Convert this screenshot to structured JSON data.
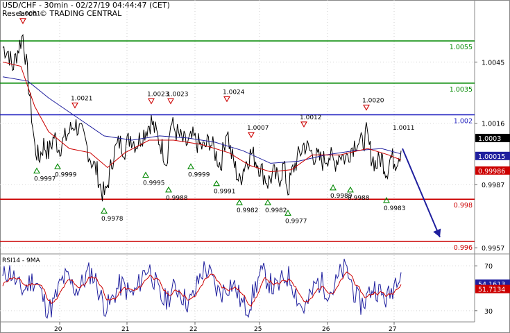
{
  "header": {
    "title": "USD/CHF - 30min - 02/27/19 04:44:47 (CET)",
    "source": "Research © TRADING CENTRAL"
  },
  "colors": {
    "price": "#000000",
    "ma_fast": "#cc0000",
    "ma_slow": "#1f1f9e",
    "support": "#cc0000",
    "resistance_green": "#008800",
    "resistance_blue": "#1f1fbf",
    "projection": "#1f1f9e",
    "pivot_high": "#cc0000",
    "pivot_low": "#008800"
  },
  "chart_data": [
    {
      "type": "line",
      "panel": "price",
      "ylim": [
        0.9946,
        1.0066
      ],
      "x_ticks": [
        "20",
        "21",
        "22",
        "25",
        "26",
        "27"
      ],
      "y_ticks": [
        "1.0045",
        "1.0016",
        "0.9987",
        "0.9957"
      ],
      "levels": [
        {
          "value": 1.0055,
          "label": "1.0055",
          "kind": "resistance_green"
        },
        {
          "value": 1.0035,
          "label": "1.0035",
          "kind": "resistance_green"
        },
        {
          "value": 1.002,
          "label": "1.002",
          "kind": "resistance_blue"
        },
        {
          "value": 0.998,
          "label": "0.998",
          "kind": "support"
        },
        {
          "value": 0.996,
          "label": "0.996",
          "kind": "support"
        }
      ],
      "last_price": {
        "value": 1.0003,
        "label": "1.0003"
      },
      "ma_values": [
        {
          "value": 1.00015,
          "label": "1.00015",
          "kind": "ma_slow"
        },
        {
          "value": 0.99986,
          "label": "0.99986",
          "kind": "ma_fast"
        }
      ],
      "pivots": [
        {
          "t": 33,
          "value": 1.0061,
          "label": "1.0061",
          "kind": "high"
        },
        {
          "t": 108,
          "value": 1.0021,
          "label": "1.0021",
          "kind": "high"
        },
        {
          "t": 218,
          "value": 1.0023,
          "label": "1.0023",
          "kind": "high"
        },
        {
          "t": 246,
          "value": 1.0023,
          "label": "1.0023",
          "kind": "high"
        },
        {
          "t": 327,
          "value": 1.0024,
          "label": "1.0024",
          "kind": "high"
        },
        {
          "t": 362,
          "value": 1.0007,
          "label": "1.0007",
          "kind": "high"
        },
        {
          "t": 438,
          "value": 1.0012,
          "label": "1.0012",
          "kind": "high"
        },
        {
          "t": 528,
          "value": 1.002,
          "label": "1.0020",
          "kind": "high"
        },
        {
          "t": 566,
          "value": 1.0011,
          "label": "1.0011",
          "kind": "text"
        },
        {
          "t": 53,
          "value": 0.9997,
          "label": "0.9997",
          "kind": "low"
        },
        {
          "t": 83,
          "value": 0.9999,
          "label": "0.9999",
          "kind": "low"
        },
        {
          "t": 150,
          "value": 0.9978,
          "label": "0.9978",
          "kind": "low"
        },
        {
          "t": 210,
          "value": 0.9995,
          "label": "0.9995",
          "kind": "low"
        },
        {
          "t": 243,
          "value": 0.9988,
          "label": "0.9988",
          "kind": "low"
        },
        {
          "t": 275,
          "value": 0.9999,
          "label": "0.9999",
          "kind": "low"
        },
        {
          "t": 312,
          "value": 0.9991,
          "label": "0.9991",
          "kind": "low"
        },
        {
          "t": 345,
          "value": 0.9982,
          "label": "0.9982",
          "kind": "low"
        },
        {
          "t": 386,
          "value": 0.9982,
          "label": "0.9982",
          "kind": "low"
        },
        {
          "t": 415,
          "value": 0.9977,
          "label": "0.9977",
          "kind": "low"
        },
        {
          "t": 480,
          "value": 0.9989,
          "label": "0.9989",
          "kind": "low"
        },
        {
          "t": 505,
          "value": 0.9988,
          "label": "0.9988",
          "kind": "low"
        },
        {
          "t": 557,
          "value": 0.9983,
          "label": "0.9983",
          "kind": "low"
        }
      ],
      "price_path": [
        [
          4,
          1.0052
        ],
        [
          12,
          1.005
        ],
        [
          18,
          1.0042
        ],
        [
          24,
          1.0049
        ],
        [
          33,
          1.0058
        ],
        [
          38,
          1.0044
        ],
        [
          44,
          1.0025
        ],
        [
          50,
          1.0005
        ],
        [
          56,
          0.9999
        ],
        [
          63,
          1.0006
        ],
        [
          70,
          1.0002
        ],
        [
          78,
          1.001
        ],
        [
          85,
          1.0004
        ],
        [
          92,
          1.0008
        ],
        [
          100,
          1.0012
        ],
        [
          108,
          1.0016
        ],
        [
          116,
          1.0012
        ],
        [
          124,
          1.0006
        ],
        [
          132,
          0.9998
        ],
        [
          140,
          0.9993
        ],
        [
          146,
          0.9984
        ],
        [
          152,
          0.9982
        ],
        [
          158,
          0.9992
        ],
        [
          164,
          1.0002
        ],
        [
          172,
          1.0007
        ],
        [
          180,
          1.0004
        ],
        [
          188,
          1.001
        ],
        [
          196,
          1.0006
        ],
        [
          204,
          1.001
        ],
        [
          212,
          1.0014
        ],
        [
          218,
          1.0017
        ],
        [
          224,
          1.0012
        ],
        [
          232,
          1.0006
        ],
        [
          240,
          0.9998
        ],
        [
          246,
          1.0016
        ],
        [
          254,
          1.0012
        ],
        [
          262,
          1.0008
        ],
        [
          270,
          1.0006
        ],
        [
          278,
          1.0009
        ],
        [
          286,
          1.0006
        ],
        [
          294,
          1.0004
        ],
        [
          302,
          1.0008
        ],
        [
          310,
          1.0002
        ],
        [
          318,
          0.9996
        ],
        [
          327,
          1.0014
        ],
        [
          332,
          1.0003
        ],
        [
          338,
          0.9996
        ],
        [
          345,
          0.9988
        ],
        [
          352,
          0.9996
        ],
        [
          362,
          1.0002
        ],
        [
          370,
          0.9998
        ],
        [
          378,
          0.9993
        ],
        [
          386,
          0.9988
        ],
        [
          394,
          0.9992
        ],
        [
          402,
          0.9989
        ],
        [
          409,
          0.9996
        ],
        [
          415,
          0.9984
        ],
        [
          422,
          0.9994
        ],
        [
          430,
          1.0
        ],
        [
          438,
          1.0006
        ],
        [
          446,
          1.0003
        ],
        [
          455,
          1.0
        ],
        [
          465,
          0.9998
        ],
        [
          474,
          1.0001
        ],
        [
          482,
          0.9997
        ],
        [
          490,
          1.0002
        ],
        [
          498,
          0.9999
        ],
        [
          506,
          1.0004
        ],
        [
          514,
          1.0008
        ],
        [
          522,
          1.0006
        ],
        [
          528,
          1.0011
        ],
        [
          535,
          1.0001
        ],
        [
          542,
          0.9996
        ],
        [
          550,
          1.0
        ],
        [
          557,
          0.9993
        ],
        [
          563,
          1.0
        ],
        [
          570,
          0.9998
        ],
        [
          578,
          1.0003
        ]
      ],
      "ma_fast_path": [
        [
          4,
          1.0045
        ],
        [
          30,
          1.0043
        ],
        [
          50,
          1.0024
        ],
        [
          70,
          1.0012
        ],
        [
          100,
          1.0004
        ],
        [
          130,
          1.0002
        ],
        [
          155,
          0.9995
        ],
        [
          180,
          1.0002
        ],
        [
          215,
          1.0008
        ],
        [
          250,
          1.0008
        ],
        [
          290,
          1.0006
        ],
        [
          330,
          1.0002
        ],
        [
          360,
          0.9996
        ],
        [
          390,
          0.9993
        ],
        [
          420,
          0.9994
        ],
        [
          450,
          1.0001
        ],
        [
          490,
          1.0001
        ],
        [
          530,
          1.0004
        ],
        [
          560,
          1.0001
        ],
        [
          578,
          0.99986
        ]
      ],
      "ma_slow_path": [
        [
          4,
          1.0038
        ],
        [
          40,
          1.0036
        ],
        [
          70,
          1.0028
        ],
        [
          110,
          1.0019
        ],
        [
          150,
          1.001
        ],
        [
          190,
          1.0008
        ],
        [
          230,
          1.001
        ],
        [
          270,
          1.0009
        ],
        [
          310,
          1.0007
        ],
        [
          350,
          1.0003
        ],
        [
          390,
          0.9997
        ],
        [
          430,
          0.9998
        ],
        [
          470,
          1.0001
        ],
        [
          510,
          1.0003
        ],
        [
          550,
          1.0004
        ],
        [
          578,
          1.00015
        ]
      ],
      "projection": [
        [
          580,
          1.0004
        ],
        [
          634,
          0.9962
        ]
      ]
    },
    {
      "type": "line",
      "panel": "indicator",
      "title": "RSI14 - 9MA",
      "y_ticks": [
        "70",
        "30"
      ],
      "ylim": [
        20,
        80
      ],
      "values_labels": [
        {
          "value": 54.1613,
          "label": "54.1613",
          "kind": "ma_slow"
        },
        {
          "value": 51.7134,
          "label": "51.7134",
          "kind": "ma_fast"
        }
      ]
    }
  ]
}
